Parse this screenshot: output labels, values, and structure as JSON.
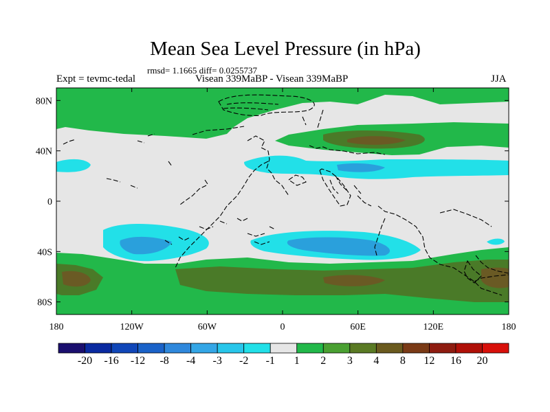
{
  "title": "Mean Sea Level Pressure (in hPa)",
  "stats_line": "rmsd= 1.1665  diff= 0.0255737",
  "experiment_label": "Expt = tevmc-tedal",
  "experiment_name": "Visean 339MaBP - Visean 339MaBP",
  "season": "JJA",
  "lat_ticks": [
    "80N",
    "40N",
    "0",
    "40S",
    "80S"
  ],
  "lon_ticks": [
    "180",
    "120W",
    "60W",
    "0",
    "60E",
    "120E",
    "180"
  ],
  "colorbar": {
    "levels": [
      "-20",
      "-16",
      "-12",
      "-8",
      "-4",
      "-3",
      "-2",
      "-1",
      "1",
      "2",
      "3",
      "4",
      "8",
      "12",
      "16",
      "20"
    ],
    "colors": [
      "#1a0f6e",
      "#0a2aa0",
      "#1046b8",
      "#1a62c8",
      "#2f88dc",
      "#34a6e6",
      "#28c6ea",
      "#22e0e8",
      "#e6e6e6",
      "#22b84a",
      "#4aa032",
      "#5a7a24",
      "#6a5a1e",
      "#7a3a16",
      "#8e1c10",
      "#b01008",
      "#d8100a"
    ]
  },
  "fields": {
    "background_color": "#e6e6e6",
    "positive_light": "#22b84a",
    "positive_medium": "#4a7a28",
    "positive_dark": "#6a5a24",
    "negative_light": "#22e0e8",
    "negative_medium": "#2aa0dc",
    "negative_dark": "#2f88dc"
  }
}
